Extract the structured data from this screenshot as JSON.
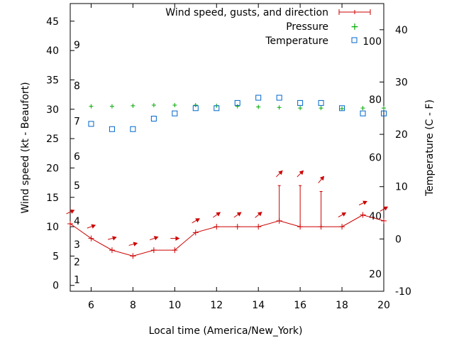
{
  "chart_data": {
    "type": "line",
    "xlabel": "Local time (America/New_York)",
    "ylabel": "Wind speed (kt - Beaufort)",
    "y2label": "Temperature (C - F)",
    "xlim": [
      5,
      20
    ],
    "ylim": [
      -1,
      48
    ],
    "y2lim": [
      -10,
      45
    ],
    "x_ticks": [
      6,
      8,
      10,
      12,
      14,
      16,
      18,
      20
    ],
    "y_ticks": [
      0,
      5,
      10,
      15,
      20,
      25,
      30,
      35,
      40,
      45
    ],
    "y2_ticks": [
      -10,
      0,
      10,
      20,
      30,
      40
    ],
    "beaufort_labels": [
      {
        "label": "1",
        "y": 1
      },
      {
        "label": "2",
        "y": 4
      },
      {
        "label": "3",
        "y": 7
      },
      {
        "label": "4",
        "y": 11
      },
      {
        "label": "5",
        "y": 17
      },
      {
        "label": "6",
        "y": 22
      },
      {
        "label": "7",
        "y": 28
      },
      {
        "label": "8",
        "y": 34
      },
      {
        "label": "9",
        "y": 41
      }
    ],
    "fahrenheit_labels": [
      {
        "label": "20",
        "c": -6.7
      },
      {
        "label": "40",
        "c": 4.4
      },
      {
        "label": "60",
        "c": 15.6
      },
      {
        "label": "80",
        "c": 26.7
      },
      {
        "label": "100",
        "c": 37.8
      }
    ],
    "legend_position": "top-right",
    "series": [
      {
        "name": "Wind speed, gusts, and direction",
        "color": "#cc0000",
        "x": [
          5,
          6,
          7,
          8,
          9,
          10,
          11,
          12,
          13,
          14,
          15,
          16,
          17,
          18,
          19,
          20
        ],
        "y": [
          10.5,
          8,
          6,
          5,
          6,
          6,
          9,
          10,
          10,
          10,
          11,
          10,
          10,
          10,
          12,
          11
        ],
        "gusts": [
          null,
          null,
          null,
          null,
          null,
          null,
          null,
          null,
          null,
          null,
          17,
          17,
          16,
          null,
          null,
          null
        ],
        "direction_deg": [
          245,
          250,
          255,
          255,
          250,
          270,
          240,
          235,
          235,
          230,
          225,
          225,
          220,
          240,
          245,
          240
        ]
      },
      {
        "name": "Pressure",
        "color": "#00aa00",
        "x": [
          6,
          7,
          8,
          9,
          10,
          11,
          12,
          13,
          14,
          15,
          16,
          17,
          18,
          19,
          20
        ],
        "y": [
          30.5,
          30.5,
          30.6,
          30.7,
          30.7,
          30.7,
          30.6,
          30.5,
          30.4,
          30.3,
          30.2,
          30.2,
          30.1,
          30.2,
          30.2
        ]
      },
      {
        "name": "Temperature",
        "color": "#0066cc",
        "unit": "C",
        "x": [
          6,
          7,
          8,
          9,
          10,
          11,
          12,
          13,
          14,
          15,
          16,
          17,
          18,
          19,
          20
        ],
        "y": [
          22,
          21,
          21,
          23,
          24,
          25,
          25,
          26,
          27,
          27,
          26,
          26,
          25,
          24,
          24
        ]
      }
    ]
  }
}
